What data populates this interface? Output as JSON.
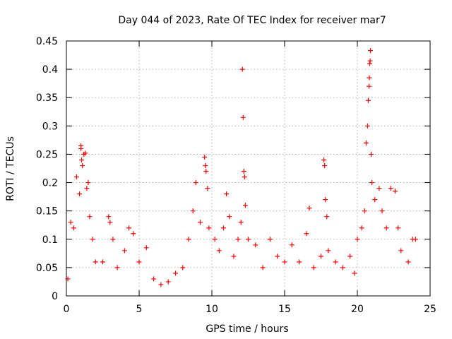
{
  "chart_data": {
    "type": "scatter",
    "title": "Day 044 of 2023, Rate Of TEC Index for receiver mar7",
    "xlabel": "GPS time / hours",
    "ylabel": "ROTI / TECUs",
    "xlim": [
      0,
      25
    ],
    "ylim": [
      0,
      0.45
    ],
    "x_ticks": [
      0,
      5,
      10,
      15,
      20,
      25
    ],
    "y_ticks": [
      0,
      0.05,
      0.1,
      0.15,
      0.2,
      0.25,
      0.3,
      0.35,
      0.4,
      0.45
    ],
    "x_tick_labels": [
      "0",
      "5",
      "10",
      "15",
      "20",
      "25"
    ],
    "y_tick_labels": [
      "0",
      "0.05",
      "0.1",
      "0.15",
      "0.2",
      "0.25",
      "0.3",
      "0.35",
      "0.4",
      "0.45"
    ],
    "grid": true,
    "marker": "+",
    "marker_color": "#ff0000",
    "series": [
      {
        "name": "ROTI",
        "points": [
          [
            0.1,
            0.03
          ],
          [
            0.3,
            0.13
          ],
          [
            0.5,
            0.12
          ],
          [
            0.7,
            0.21
          ],
          [
            0.9,
            0.18
          ],
          [
            1.0,
            0.265
          ],
          [
            1.0,
            0.26
          ],
          [
            1.05,
            0.24
          ],
          [
            1.1,
            0.23
          ],
          [
            1.2,
            0.25
          ],
          [
            1.3,
            0.252
          ],
          [
            1.4,
            0.19
          ],
          [
            1.5,
            0.2
          ],
          [
            1.6,
            0.14
          ],
          [
            1.8,
            0.1
          ],
          [
            2.0,
            0.06
          ],
          [
            2.5,
            0.06
          ],
          [
            2.9,
            0.14
          ],
          [
            3.0,
            0.13
          ],
          [
            3.2,
            0.1
          ],
          [
            3.5,
            0.05
          ],
          [
            4.0,
            0.08
          ],
          [
            4.3,
            0.12
          ],
          [
            4.6,
            0.11
          ],
          [
            5.0,
            0.06
          ],
          [
            5.5,
            0.085
          ],
          [
            6.0,
            0.03
          ],
          [
            6.5,
            0.02
          ],
          [
            7.0,
            0.025
          ],
          [
            7.5,
            0.04
          ],
          [
            8.0,
            0.05
          ],
          [
            8.4,
            0.1
          ],
          [
            8.7,
            0.15
          ],
          [
            8.9,
            0.2
          ],
          [
            9.2,
            0.13
          ],
          [
            9.5,
            0.245
          ],
          [
            9.55,
            0.23
          ],
          [
            9.6,
            0.22
          ],
          [
            9.7,
            0.19
          ],
          [
            9.8,
            0.12
          ],
          [
            10.2,
            0.1
          ],
          [
            10.5,
            0.08
          ],
          [
            10.8,
            0.12
          ],
          [
            11.0,
            0.18
          ],
          [
            11.2,
            0.14
          ],
          [
            11.5,
            0.07
          ],
          [
            11.8,
            0.1
          ],
          [
            12.0,
            0.13
          ],
          [
            12.1,
            0.4
          ],
          [
            12.15,
            0.315
          ],
          [
            12.2,
            0.22
          ],
          [
            12.25,
            0.21
          ],
          [
            12.3,
            0.16
          ],
          [
            12.5,
            0.1
          ],
          [
            13.0,
            0.09
          ],
          [
            13.5,
            0.05
          ],
          [
            14.0,
            0.1
          ],
          [
            14.5,
            0.07
          ],
          [
            15.0,
            0.06
          ],
          [
            15.5,
            0.09
          ],
          [
            16.0,
            0.06
          ],
          [
            16.5,
            0.11
          ],
          [
            16.7,
            0.155
          ],
          [
            17.0,
            0.05
          ],
          [
            17.5,
            0.07
          ],
          [
            17.7,
            0.24
          ],
          [
            17.75,
            0.23
          ],
          [
            17.8,
            0.17
          ],
          [
            17.9,
            0.14
          ],
          [
            18.0,
            0.08
          ],
          [
            18.5,
            0.06
          ],
          [
            19.0,
            0.05
          ],
          [
            19.5,
            0.07
          ],
          [
            19.8,
            0.04
          ],
          [
            20.0,
            0.1
          ],
          [
            20.3,
            0.12
          ],
          [
            20.5,
            0.15
          ],
          [
            20.6,
            0.27
          ],
          [
            20.7,
            0.3
          ],
          [
            20.75,
            0.345
          ],
          [
            20.8,
            0.37
          ],
          [
            20.82,
            0.385
          ],
          [
            20.85,
            0.41
          ],
          [
            20.88,
            0.415
          ],
          [
            20.9,
            0.433
          ],
          [
            20.95,
            0.25
          ],
          [
            21.0,
            0.2
          ],
          [
            21.2,
            0.17
          ],
          [
            21.5,
            0.19
          ],
          [
            21.7,
            0.15
          ],
          [
            22.0,
            0.12
          ],
          [
            22.3,
            0.19
          ],
          [
            22.6,
            0.185
          ],
          [
            22.8,
            0.12
          ],
          [
            23.0,
            0.08
          ],
          [
            23.5,
            0.06
          ],
          [
            23.8,
            0.1
          ],
          [
            24.0,
            0.1
          ]
        ]
      }
    ]
  }
}
